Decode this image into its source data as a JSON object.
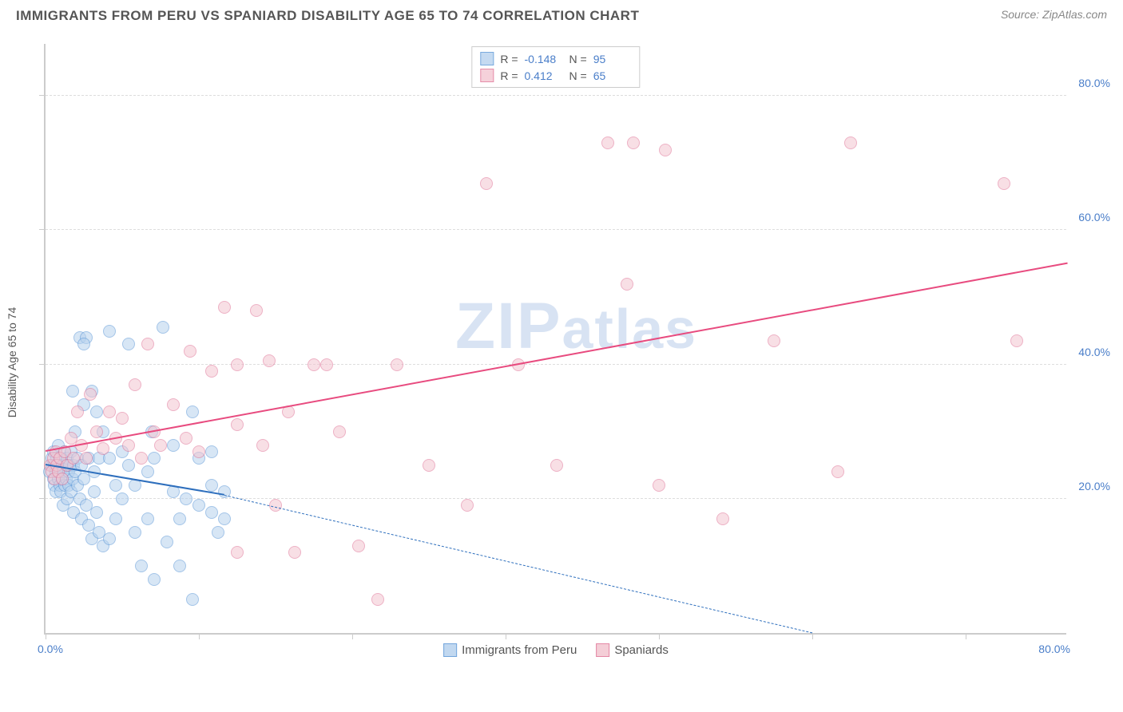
{
  "title": "IMMIGRANTS FROM PERU VS SPANIARD DISABILITY AGE 65 TO 74 CORRELATION CHART",
  "source_label": "Source: ",
  "source_name": "ZipAtlas.com",
  "ylabel": "Disability Age 65 to 74",
  "watermark_a": "ZIP",
  "watermark_b": "atlas",
  "chart": {
    "type": "scatter",
    "xlim": [
      0,
      80
    ],
    "ylim": [
      0,
      88
    ],
    "x_zero_label": "0.0%",
    "x_max_label": "80.0%",
    "y_ticks": [
      20,
      40,
      60,
      80
    ],
    "y_tick_labels": [
      "20.0%",
      "40.0%",
      "60.0%",
      "80.0%"
    ],
    "x_tick_positions": [
      0,
      12,
      24,
      36,
      48,
      60,
      72
    ],
    "grid_color": "#dddddd",
    "axis_color": "#cccccc",
    "background": "#ffffff",
    "marker_radius": 8,
    "marker_stroke_width": 1.5,
    "series": [
      {
        "name": "Immigrants from Peru",
        "fill": "#b7d2ee",
        "stroke": "#5a96d6",
        "fill_opacity": 0.55,
        "R": "-0.148",
        "N": "95",
        "regression": {
          "x0": 0,
          "y0": 25,
          "x1_solid": 14,
          "y1_solid": 20.5,
          "x1_dash": 60,
          "y1_dash": 0,
          "color": "#2e6fbd",
          "width": 2
        },
        "points": [
          [
            0.3,
            24
          ],
          [
            0.5,
            25
          ],
          [
            0.5,
            26
          ],
          [
            0.6,
            23
          ],
          [
            0.6,
            27
          ],
          [
            0.7,
            22
          ],
          [
            0.7,
            25
          ],
          [
            0.8,
            24
          ],
          [
            0.8,
            21
          ],
          [
            0.9,
            26
          ],
          [
            1.0,
            23
          ],
          [
            1.0,
            25
          ],
          [
            1.0,
            28
          ],
          [
            1.1,
            22
          ],
          [
            1.1,
            24
          ],
          [
            1.2,
            21
          ],
          [
            1.2,
            26
          ],
          [
            1.3,
            23
          ],
          [
            1.3,
            25
          ],
          [
            1.4,
            24
          ],
          [
            1.4,
            19
          ],
          [
            1.5,
            22
          ],
          [
            1.5,
            27
          ],
          [
            1.6,
            25
          ],
          [
            1.6,
            23
          ],
          [
            1.7,
            20
          ],
          [
            1.7,
            26
          ],
          [
            1.8,
            24
          ],
          [
            1.8,
            22
          ],
          [
            1.9,
            25
          ],
          [
            2.0,
            27
          ],
          [
            2.0,
            21
          ],
          [
            2.1,
            23
          ],
          [
            2.1,
            36
          ],
          [
            2.2,
            25
          ],
          [
            2.2,
            18
          ],
          [
            2.3,
            24
          ],
          [
            2.3,
            30
          ],
          [
            2.5,
            26
          ],
          [
            2.5,
            22
          ],
          [
            2.7,
            20
          ],
          [
            2.7,
            44
          ],
          [
            2.8,
            17
          ],
          [
            2.8,
            25
          ],
          [
            3.0,
            23
          ],
          [
            3.0,
            34
          ],
          [
            3.2,
            44
          ],
          [
            3.2,
            19
          ],
          [
            3.4,
            26
          ],
          [
            3.4,
            16
          ],
          [
            3.6,
            14
          ],
          [
            3.6,
            36
          ],
          [
            3.8,
            24
          ],
          [
            3.8,
            21
          ],
          [
            4.0,
            33
          ],
          [
            4.0,
            18
          ],
          [
            4.2,
            26
          ],
          [
            4.2,
            15
          ],
          [
            4.5,
            13
          ],
          [
            4.5,
            30
          ],
          [
            5.0,
            14
          ],
          [
            5.0,
            45
          ],
          [
            5.0,
            26
          ],
          [
            5.5,
            17
          ],
          [
            5.5,
            22
          ],
          [
            6.0,
            20
          ],
          [
            6.0,
            27
          ],
          [
            6.5,
            25
          ],
          [
            6.5,
            43
          ],
          [
            7.0,
            15
          ],
          [
            7.0,
            22
          ],
          [
            7.5,
            10
          ],
          [
            8.0,
            17
          ],
          [
            8.0,
            24
          ],
          [
            8.3,
            30
          ],
          [
            8.5,
            26
          ],
          [
            8.5,
            8
          ],
          [
            9.5,
            13.5
          ],
          [
            10,
            21
          ],
          [
            10,
            28
          ],
          [
            10.5,
            17
          ],
          [
            10.5,
            10
          ],
          [
            11.5,
            5
          ],
          [
            11,
            20
          ],
          [
            11.5,
            33
          ],
          [
            12,
            19
          ],
          [
            12,
            26
          ],
          [
            13,
            22
          ],
          [
            13,
            18
          ],
          [
            13.5,
            15
          ],
          [
            14,
            21
          ],
          [
            13,
            27
          ],
          [
            14,
            17
          ],
          [
            9.2,
            45.5
          ],
          [
            3.0,
            43
          ]
        ]
      },
      {
        "name": "Spaniards",
        "fill": "#f3c6d1",
        "stroke": "#e07396",
        "fill_opacity": 0.55,
        "R": "0.412",
        "N": "65",
        "regression": {
          "x0": 0,
          "y0": 27,
          "x1_solid": 80,
          "y1_solid": 55,
          "color": "#e84b7f",
          "width": 2
        },
        "points": [
          [
            0.4,
            25
          ],
          [
            0.5,
            24
          ],
          [
            0.6,
            26
          ],
          [
            0.7,
            23
          ],
          [
            0.8,
            27
          ],
          [
            0.9,
            25
          ],
          [
            1.0,
            24
          ],
          [
            1.1,
            26
          ],
          [
            1.3,
            23
          ],
          [
            1.5,
            27
          ],
          [
            1.7,
            25
          ],
          [
            2.0,
            29
          ],
          [
            2.2,
            26
          ],
          [
            2.5,
            33
          ],
          [
            2.8,
            28
          ],
          [
            3.2,
            26
          ],
          [
            3.5,
            35.5
          ],
          [
            4.0,
            30
          ],
          [
            4.5,
            27.5
          ],
          [
            5.0,
            33
          ],
          [
            5.5,
            29
          ],
          [
            6.0,
            32
          ],
          [
            6.5,
            28
          ],
          [
            7.0,
            37
          ],
          [
            7.5,
            26
          ],
          [
            8.0,
            43
          ],
          [
            8.5,
            30
          ],
          [
            9.0,
            28
          ],
          [
            10,
            34
          ],
          [
            11,
            29
          ],
          [
            11.3,
            42
          ],
          [
            12,
            27
          ],
          [
            13,
            39
          ],
          [
            14,
            48.5
          ],
          [
            15,
            40
          ],
          [
            15,
            31
          ],
          [
            15,
            12
          ],
          [
            16.5,
            48
          ],
          [
            17.5,
            40.5
          ],
          [
            17,
            28
          ],
          [
            18,
            19
          ],
          [
            19,
            33
          ],
          [
            19.5,
            12
          ],
          [
            21,
            40
          ],
          [
            22,
            40
          ],
          [
            23,
            30
          ],
          [
            24.5,
            13
          ],
          [
            26,
            5
          ],
          [
            27.5,
            40
          ],
          [
            30,
            25
          ],
          [
            33,
            19
          ],
          [
            34.5,
            67
          ],
          [
            37,
            40
          ],
          [
            44,
            73
          ],
          [
            45.5,
            52
          ],
          [
            46,
            73
          ],
          [
            48,
            22
          ],
          [
            53,
            17
          ],
          [
            57,
            43.5
          ],
          [
            62,
            24
          ],
          [
            63,
            73
          ],
          [
            75,
            67
          ],
          [
            76,
            43.5
          ],
          [
            48.5,
            72
          ],
          [
            40,
            25
          ]
        ]
      }
    ]
  },
  "stat_box": {
    "labels": {
      "R": "R =",
      "N": "N ="
    }
  },
  "colors": {
    "text_title": "#555555",
    "text_tick": "#4a7ec9",
    "watermark": "#d8e3f3"
  }
}
